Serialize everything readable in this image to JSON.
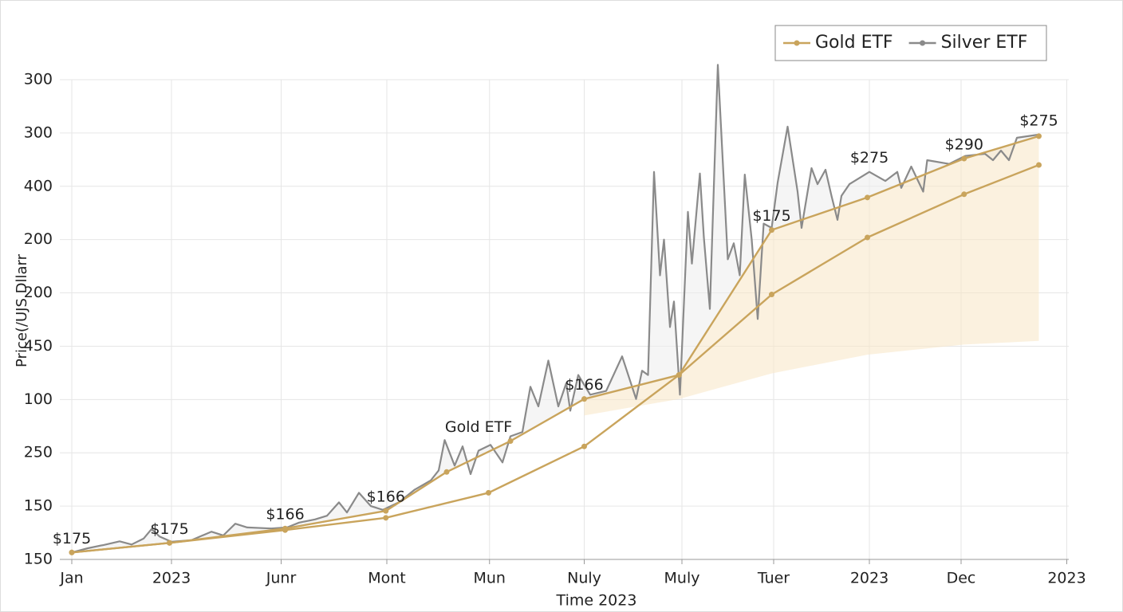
{
  "chart_data": {
    "type": "line",
    "y_label": "Price(/UJS Dllarr",
    "x_label": "Time 2023",
    "legend": "upper right",
    "grid": true,
    "xlim": [
      -0.12,
      10
    ],
    "ylim": [
      0,
      9
    ],
    "xticks": [
      {
        "value": 0,
        "label": "Jan"
      },
      {
        "value": 1,
        "label": "2023"
      },
      {
        "value": 2.1,
        "label": "Junr"
      },
      {
        "value": 3.16,
        "label": "Mont"
      },
      {
        "value": 4.19,
        "label": "Mun"
      },
      {
        "value": 5.14,
        "label": "Nuly"
      },
      {
        "value": 6.12,
        "label": "Muly"
      },
      {
        "value": 7.04,
        "label": "Tuer"
      },
      {
        "value": 8,
        "label": "2023"
      },
      {
        "value": 8.92,
        "label": "Dec"
      },
      {
        "value": 9.98,
        "label": "2023"
      }
    ],
    "yticks": [
      {
        "value": 0,
        "label": "150"
      },
      {
        "value": 1,
        "label": "150"
      },
      {
        "value": 2,
        "label": "250"
      },
      {
        "value": 3,
        "label": "100"
      },
      {
        "value": 4,
        "label": "450"
      },
      {
        "value": 5,
        "label": "200"
      },
      {
        "value": 6,
        "label": "200"
      },
      {
        "value": 7,
        "label": "400"
      },
      {
        "value": 8,
        "label": "300"
      },
      {
        "value": 9,
        "label": "300"
      }
    ],
    "series": [
      {
        "name": "Gold ETF",
        "color": "#c9a45c",
        "marker": true,
        "x": [
          0,
          0.98,
          2.14,
          3.15,
          3.76,
          4.4,
          5.14,
          6.09,
          7.02,
          7.98,
          8.95,
          9.7
        ],
        "values": [
          0.13,
          0.31,
          0.58,
          0.91,
          1.64,
          2.22,
          3.01,
          3.46,
          6.18,
          6.79,
          7.52,
          7.94
        ]
      },
      {
        "color": "#c9a45c",
        "marker": true,
        "x": [
          0,
          0.98,
          2.14,
          3.15,
          4.18,
          5.14,
          6.09,
          7.02,
          7.98,
          8.95,
          9.7
        ],
        "values": [
          0.13,
          0.31,
          0.55,
          0.78,
          1.25,
          2.12,
          3.46,
          4.97,
          6.04,
          6.85,
          7.4
        ]
      },
      {
        "name": "Silver ETF",
        "color": "#8a8a8a",
        "marker": false,
        "x": [
          0,
          0.16,
          0.32,
          0.48,
          0.6,
          0.72,
          0.8,
          0.88,
          1.0,
          1.2,
          1.4,
          1.52,
          1.64,
          1.76,
          2.0,
          2.16,
          2.28,
          2.44,
          2.56,
          2.68,
          2.76,
          2.88,
          3.0,
          3.12,
          3.28,
          3.44,
          3.6,
          3.68,
          3.74,
          3.84,
          3.92,
          4.0,
          4.08,
          4.2,
          4.32,
          4.4,
          4.52,
          4.6,
          4.68,
          4.78,
          4.88,
          4.96,
          5.0,
          5.08,
          5.2,
          5.36,
          5.52,
          5.66,
          5.72,
          5.78,
          5.84,
          5.9,
          5.94,
          6.0,
          6.04,
          6.1,
          6.18,
          6.22,
          6.3,
          6.34,
          6.4,
          6.48,
          6.58,
          6.64,
          6.7,
          6.75,
          6.82,
          6.88,
          6.94,
          7.02,
          7.08,
          7.18,
          7.28,
          7.32,
          7.42,
          7.48,
          7.56,
          7.62,
          7.68,
          7.72,
          7.8,
          8.0,
          8.16,
          8.28,
          8.32,
          8.42,
          8.54,
          8.58,
          8.8,
          8.96,
          9.16,
          9.24,
          9.32,
          9.4,
          9.48,
          9.7
        ],
        "values": [
          0.13,
          0.21,
          0.27,
          0.34,
          0.28,
          0.39,
          0.57,
          0.43,
          0.33,
          0.36,
          0.52,
          0.45,
          0.67,
          0.6,
          0.58,
          0.6,
          0.69,
          0.75,
          0.82,
          1.07,
          0.88,
          1.25,
          1.0,
          0.93,
          1.07,
          1.31,
          1.48,
          1.67,
          2.24,
          1.76,
          2.12,
          1.6,
          2.04,
          2.15,
          1.82,
          2.31,
          2.39,
          3.24,
          2.87,
          3.73,
          2.87,
          3.31,
          2.79,
          3.46,
          3.09,
          3.16,
          3.81,
          3.01,
          3.54,
          3.46,
          7.27,
          5.33,
          6.0,
          4.36,
          4.84,
          3.09,
          6.52,
          5.55,
          7.24,
          6.04,
          4.7,
          9.28,
          5.63,
          5.93,
          5.33,
          7.22,
          6.0,
          4.51,
          6.3,
          6.22,
          7.07,
          8.12,
          6.9,
          6.22,
          7.34,
          7.04,
          7.31,
          6.82,
          6.37,
          6.82,
          7.04,
          7.27,
          7.1,
          7.27,
          6.97,
          7.37,
          6.9,
          7.49,
          7.42,
          7.57,
          7.61,
          7.49,
          7.67,
          7.49,
          7.91,
          7.97
        ]
      }
    ],
    "band": {
      "color": "#f7e6c4",
      "x": [
        5.14,
        6.09,
        7.02,
        7.98,
        8.95,
        9.7
      ],
      "values": [
        2.7,
        3.01,
        3.49,
        3.84,
        4.03,
        4.1
      ]
    },
    "annotations": [
      {
        "text": "$175",
        "x": 0,
        "y": 0.13
      },
      {
        "text": "$175",
        "x": 0.98,
        "y": 0.31
      },
      {
        "text": "$166",
        "x": 2.14,
        "y": 0.58
      },
      {
        "text": "$166",
        "x": 3.15,
        "y": 0.91
      },
      {
        "text": "Gold ETF",
        "x": 4.08,
        "y": 2.22
      },
      {
        "text": "$166",
        "x": 5.14,
        "y": 3.01
      },
      {
        "text": "$175",
        "x": 7.02,
        "y": 6.18
      },
      {
        "text": "$275",
        "x": 8.0,
        "y": 7.27
      },
      {
        "text": "$290",
        "x": 8.95,
        "y": 7.52
      },
      {
        "text": "$275",
        "x": 9.7,
        "y": 7.97
      }
    ]
  }
}
